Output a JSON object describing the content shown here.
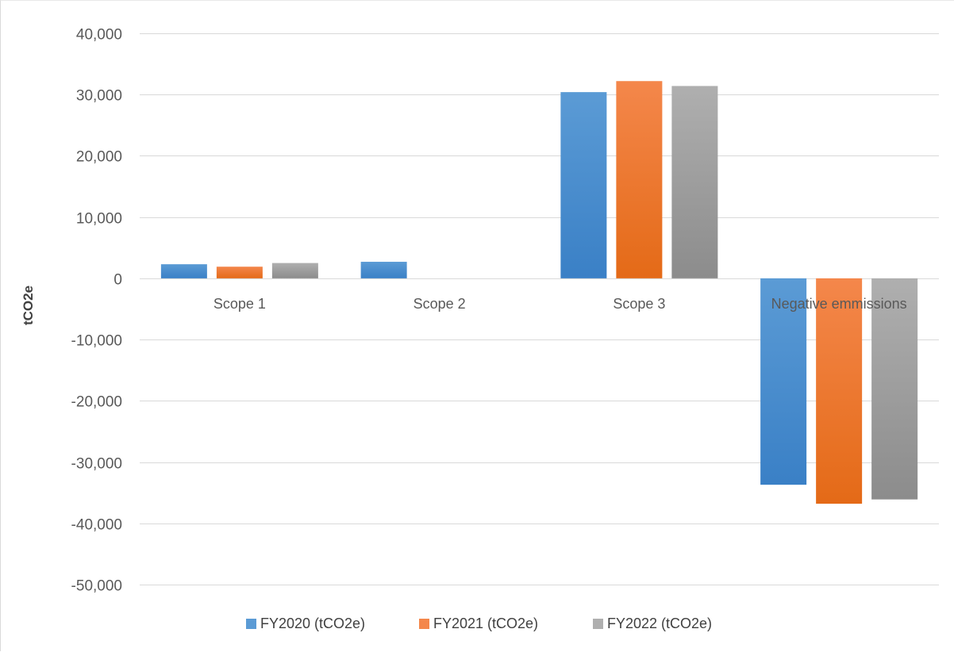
{
  "chart_data": {
    "type": "bar",
    "title": "",
    "xlabel": "",
    "ylabel": "tCO2e",
    "categories": [
      "Scope 1",
      "Scope 2",
      "Scope 3",
      "Negative emmissions"
    ],
    "series": [
      {
        "name": "FY2020 (tCO2e)",
        "color": "#5B9BD5",
        "color_dark": "#3A80C6",
        "values": [
          2300,
          2700,
          30400,
          -33700
        ]
      },
      {
        "name": "FY2021 (tCO2e)",
        "color": "#F4874B",
        "color_dark": "#E46A17",
        "values": [
          1900,
          0,
          32200,
          -36800
        ]
      },
      {
        "name": "FY2022 (tCO2e)",
        "color": "#AFAFAF",
        "color_dark": "#8C8C8C",
        "values": [
          2500,
          0,
          31400,
          -36100
        ]
      }
    ],
    "ylim": [
      -50000,
      40000
    ],
    "yticks": [
      40000,
      30000,
      20000,
      10000,
      0,
      -10000,
      -20000,
      -30000,
      -40000,
      -50000
    ],
    "ytick_labels": [
      "40,000",
      "30,000",
      "20,000",
      "10,000",
      "0",
      "-10,000",
      "-20,000",
      "-30,000",
      "-40,000",
      "-50,000"
    ],
    "grid": true,
    "legend_position": "bottom",
    "gridline_color": "#d9d9d9"
  }
}
